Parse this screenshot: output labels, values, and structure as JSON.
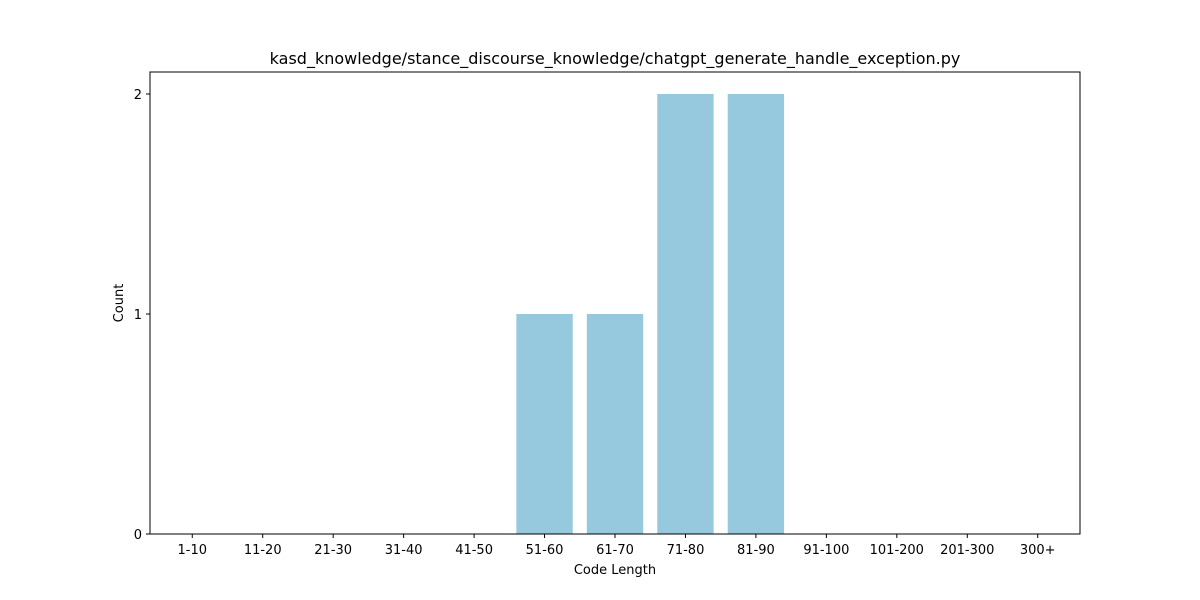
{
  "chart_data": {
    "type": "bar",
    "title": "kasd_knowledge/stance_discourse_knowledge/chatgpt_generate_handle_exception.py",
    "xlabel": "Code Length",
    "ylabel": "Count",
    "categories": [
      "1-10",
      "11-20",
      "21-30",
      "31-40",
      "41-50",
      "51-60",
      "61-70",
      "71-80",
      "81-90",
      "91-100",
      "101-200",
      "201-300",
      "300+"
    ],
    "values": [
      0,
      0,
      0,
      0,
      0,
      1,
      1,
      2,
      2,
      0,
      0,
      0,
      0
    ],
    "ylim": [
      0,
      2.1
    ],
    "yticks": [
      0,
      1,
      2
    ],
    "bar_color": "#96c9dd",
    "grid": false,
    "legend": "none"
  }
}
